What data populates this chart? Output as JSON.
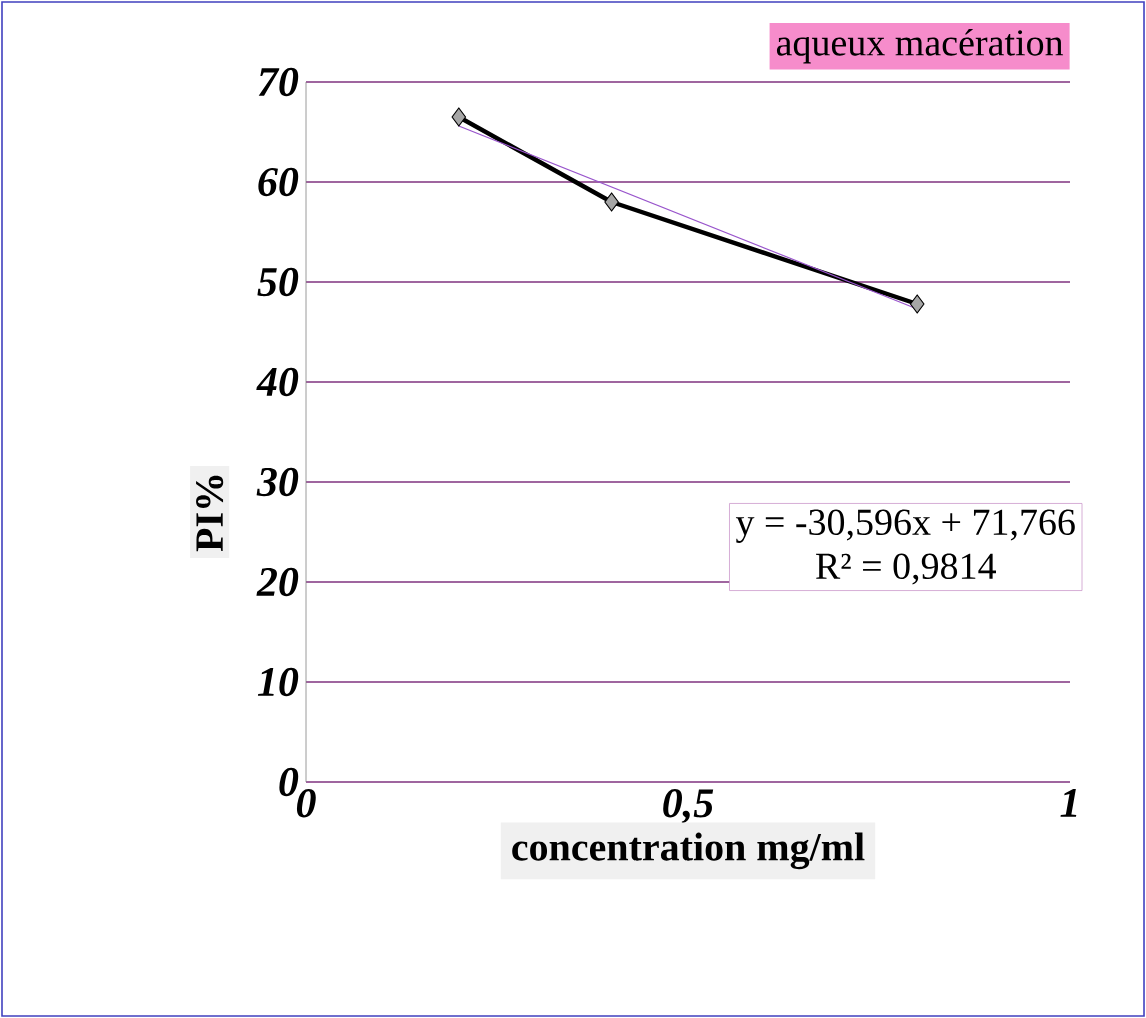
{
  "chart_data": {
    "type": "line",
    "xlabel": "concentration mg/ml",
    "ylabel": "PI%",
    "xlim": [
      0,
      1
    ],
    "xticks": [
      0,
      {
        "value": 0.5,
        "label": "0,5"
      },
      1
    ],
    "ylim": [
      0,
      70
    ],
    "yticks": [
      0,
      10,
      20,
      30,
      40,
      50,
      60,
      70
    ],
    "grid": "y",
    "marker": "diamond",
    "series": [
      {
        "x": [
          0.2,
          0.4,
          0.8
        ],
        "values": [
          66.5,
          58,
          47.8
        ],
        "color": "#000000"
      },
      {
        "type": "line",
        "x": [
          0.2,
          0.8
        ],
        "values": [
          65.6,
          47.3
        ],
        "color": "#9955cc",
        "marker": "none"
      }
    ],
    "annotations": [
      "aqueux macération",
      "y = -30,596x + 71,766",
      "R² = 0,9814"
    ]
  }
}
